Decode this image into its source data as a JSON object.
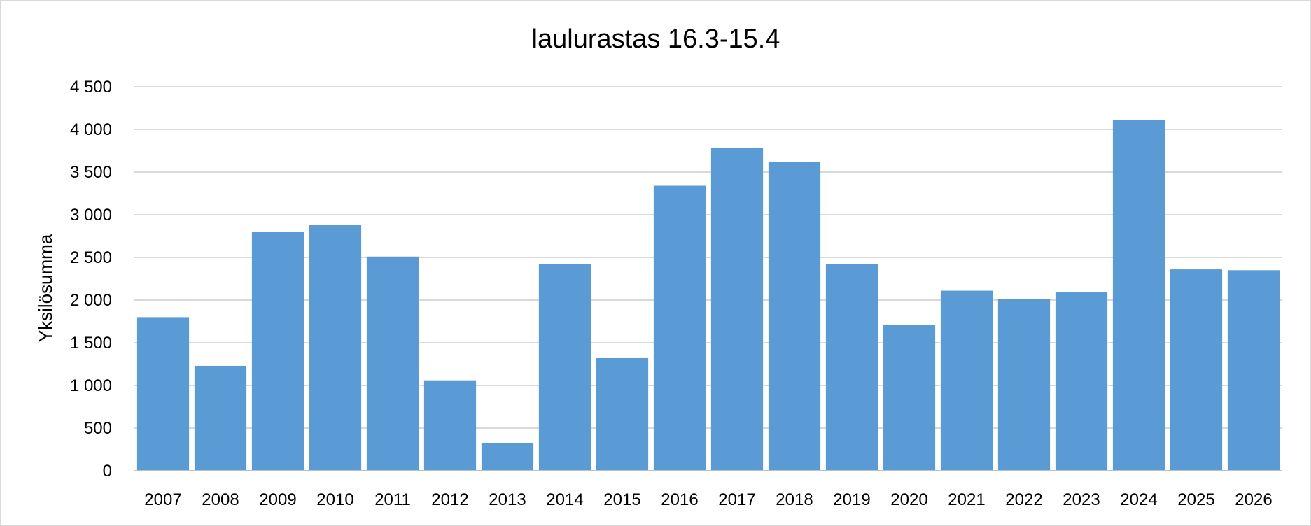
{
  "chart_data": {
    "type": "bar",
    "title": "laulurastas 16.3-15.4",
    "xlabel": "",
    "ylabel": "Yksilösumma",
    "categories": [
      "2007",
      "2008",
      "2009",
      "2010",
      "2011",
      "2012",
      "2013",
      "2014",
      "2015",
      "2016",
      "2017",
      "2018",
      "2019",
      "2020",
      "2021",
      "2022",
      "2023",
      "2024",
      "2025",
      "2026"
    ],
    "values": [
      1800,
      1230,
      2800,
      2880,
      2510,
      1060,
      320,
      2420,
      1320,
      3340,
      3780,
      3620,
      2420,
      1710,
      2110,
      2010,
      2090,
      4110,
      2360,
      2350
    ],
    "ylim": [
      0,
      4500
    ],
    "yticks": [
      0,
      500,
      1000,
      1500,
      2000,
      2500,
      3000,
      3500,
      4000,
      4500
    ],
    "ytick_labels": [
      "0",
      "500",
      "1 000",
      "1 500",
      "2 000",
      "2 500",
      "3 000",
      "3 500",
      "4 000",
      "4 500"
    ],
    "grid": true,
    "legend": "none",
    "colors": {
      "bar": "#5b9bd5",
      "grid": "#d9d9d9",
      "axis": "#bfbfbf"
    }
  }
}
